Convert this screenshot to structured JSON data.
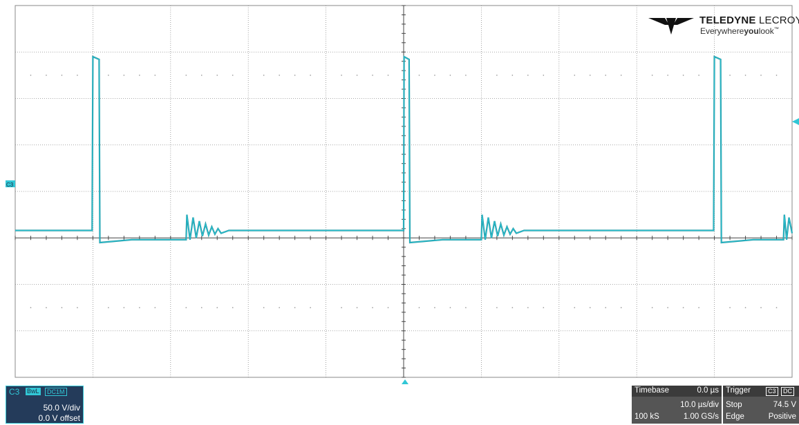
{
  "brand": {
    "name_bold": "TELEDYNE",
    "name_rest": " LECROY",
    "tagline_pre": "Everywhere",
    "tagline_bold": "you",
    "tagline_post": "look",
    "tagline_tm": "™"
  },
  "channel": {
    "label": "C3",
    "bwl_badge": "BwL",
    "coupling_badge": "DC1M",
    "vdiv": "50.0 V/div",
    "offset": "0.0 V offset",
    "trace_color": "#31c7d6"
  },
  "timebase": {
    "title": "Timebase",
    "delay": "0.0 µs",
    "tdiv": "10.0 µs/div",
    "samples": "100 kS",
    "rate": "1.00 GS/s"
  },
  "trigger": {
    "title": "Trigger",
    "source_badge": "C3",
    "coupling_badge": "DC",
    "mode": "Stop",
    "level": "74.5 V",
    "type": "Edge",
    "slope": "Positive"
  },
  "colors": {
    "grid": "#8a8a8a",
    "trace": "#2bbfcf",
    "panel_bg": "#243b5a",
    "info_bg": "#555555"
  },
  "chart_data": {
    "type": "line",
    "grid": true,
    "divisions": {
      "x": 10,
      "y": 8
    },
    "volts_per_div": 50.0,
    "time_per_div_us": 10.0,
    "x_range_us": [
      -50,
      50
    ],
    "y_range_v": [
      -150,
      250
    ],
    "trigger_level_v": 74.5,
    "series": [
      {
        "name": "C3",
        "description_points_us_v": [
          [
            -50,
            8
          ],
          [
            -40.1,
            8
          ],
          [
            -40,
            195
          ],
          [
            -39.2,
            192
          ],
          [
            -39.1,
            -5
          ],
          [
            -35,
            -2
          ],
          [
            -28,
            -2
          ],
          [
            -27.9,
            25
          ],
          [
            -27.5,
            -2
          ],
          [
            -27.1,
            22
          ],
          [
            -26.7,
            0
          ],
          [
            -26.3,
            18
          ],
          [
            -25.9,
            2
          ],
          [
            -25.5,
            15
          ],
          [
            -25.1,
            3
          ],
          [
            -24.7,
            12
          ],
          [
            -24.3,
            4
          ],
          [
            -23.9,
            10
          ],
          [
            -23.5,
            5
          ],
          [
            -22.5,
            8
          ],
          [
            -20,
            8
          ],
          [
            0,
            8
          ],
          [
            0.05,
            195
          ],
          [
            0.7,
            192
          ],
          [
            0.8,
            -5
          ],
          [
            5,
            -2
          ],
          [
            10,
            -2
          ],
          [
            10.1,
            25
          ],
          [
            10.5,
            -2
          ],
          [
            10.9,
            22
          ],
          [
            11.3,
            0
          ],
          [
            11.7,
            18
          ],
          [
            12.1,
            2
          ],
          [
            12.5,
            15
          ],
          [
            12.9,
            3
          ],
          [
            13.3,
            12
          ],
          [
            13.7,
            4
          ],
          [
            14.1,
            10
          ],
          [
            14.5,
            5
          ],
          [
            15.5,
            8
          ],
          [
            38,
            8
          ],
          [
            39.9,
            8
          ],
          [
            40,
            195
          ],
          [
            40.8,
            192
          ],
          [
            40.9,
            -5
          ],
          [
            45,
            -2
          ],
          [
            48.9,
            -2
          ],
          [
            49,
            25
          ],
          [
            49.3,
            -2
          ],
          [
            49.6,
            22
          ],
          [
            50,
            5
          ]
        ]
      }
    ]
  }
}
